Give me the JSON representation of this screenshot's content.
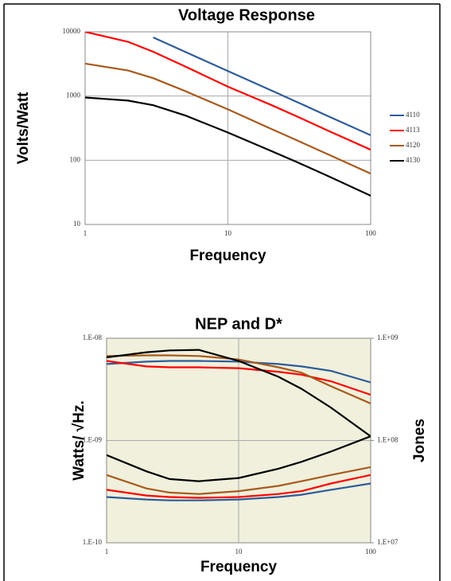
{
  "chart_data": [
    {
      "type": "line",
      "title": "Voltage Response",
      "x_label": "Frequency",
      "y_label": "Volts/Watt",
      "x": [
        1,
        2,
        3,
        5,
        10,
        20,
        30,
        50,
        100
      ],
      "xlim": [
        1,
        100
      ],
      "ylim": [
        10,
        10000
      ],
      "xticks": [
        1,
        10,
        100
      ],
      "yticks": [
        10,
        100,
        1000,
        10000
      ],
      "log_x": true,
      "log_y": true,
      "grid": true,
      "legend": "right",
      "series": [
        {
          "name": "4110",
          "color": "#2e5c9a",
          "values": [
            null,
            null,
            8200,
            4900,
            2450,
            1230,
            820,
            490,
            245
          ]
        },
        {
          "name": "4113",
          "color": "#ff0000",
          "values": [
            10000,
            7000,
            4900,
            2900,
            1400,
            730,
            490,
            290,
            146
          ]
        },
        {
          "name": "4120",
          "color": "#a85a1e",
          "values": [
            3200,
            2500,
            1900,
            1200,
            620,
            310,
            207,
            124,
            62
          ]
        },
        {
          "name": "4130",
          "color": "#000000",
          "values": [
            950,
            850,
            720,
            500,
            270,
            140,
            95,
            57,
            28
          ]
        }
      ]
    },
    {
      "type": "line",
      "title": "NEP and D*",
      "x_label": "Frequency",
      "y_label": "Watts/ √Hz.",
      "y2_label": "Jones",
      "x": [
        1,
        2,
        3,
        5,
        10,
        20,
        30,
        50,
        100
      ],
      "xlim": [
        1,
        100
      ],
      "ylim": [
        1e-10,
        1e-08
      ],
      "y2lim": [
        10000000,
        1000000000
      ],
      "xticks": [
        1,
        10,
        100
      ],
      "yticks": [
        {
          "value": 1e-10,
          "label": "1.E-10"
        },
        {
          "value": 1e-09,
          "label": "1.E-09"
        },
        {
          "value": 1e-08,
          "label": "1.E-08"
        }
      ],
      "y2ticks": [
        {
          "value": 10000000,
          "label": "1.E+07"
        },
        {
          "value": 100000000,
          "label": "1.E+08"
        },
        {
          "value": 1000000000,
          "label": "1.E+09"
        }
      ],
      "log_x": true,
      "log_y": true,
      "grid": true,
      "background": "#f0f0dc",
      "series": [
        {
          "color": "#2e5c9a",
          "values": [
            2.8e-10,
            2.65e-10,
            2.6e-10,
            2.6e-10,
            2.65e-10,
            2.8e-10,
            2.95e-10,
            3.3e-10,
            3.8e-10
          ]
        },
        {
          "color": "#ff0000",
          "values": [
            3.3e-10,
            2.9e-10,
            2.8e-10,
            2.75e-10,
            2.8e-10,
            3e-10,
            3.2e-10,
            3.8e-10,
            4.6e-10
          ]
        },
        {
          "color": "#a85a1e",
          "values": [
            4.6e-10,
            3.4e-10,
            3.1e-10,
            3e-10,
            3.2e-10,
            3.6e-10,
            4e-10,
            4.6e-10,
            5.5e-10
          ]
        },
        {
          "color": "#000000",
          "values": [
            7.2e-10,
            5e-10,
            4.2e-10,
            4e-10,
            4.3e-10,
            5.3e-10,
            6.2e-10,
            7.8e-10,
            1.1e-09
          ]
        },
        {
          "color": "#2e5c9a",
          "axis": "y2",
          "values": [
            560000000,
            590000000,
            600000000,
            600000000,
            590000000,
            560000000,
            530000000,
            480000000,
            370000000
          ]
        },
        {
          "color": "#ff0000",
          "axis": "y2",
          "values": [
            600000000,
            530000000,
            520000000,
            520000000,
            510000000,
            470000000,
            440000000,
            380000000,
            280000000
          ]
        },
        {
          "color": "#a85a1e",
          "axis": "y2",
          "values": [
            670000000,
            680000000,
            680000000,
            670000000,
            620000000,
            520000000,
            460000000,
            340000000,
            230000000
          ]
        },
        {
          "color": "#000000",
          "axis": "y2",
          "values": [
            650000000,
            730000000,
            760000000,
            770000000,
            600000000,
            420000000,
            320000000,
            210000000,
            110000000
          ]
        }
      ]
    }
  ]
}
